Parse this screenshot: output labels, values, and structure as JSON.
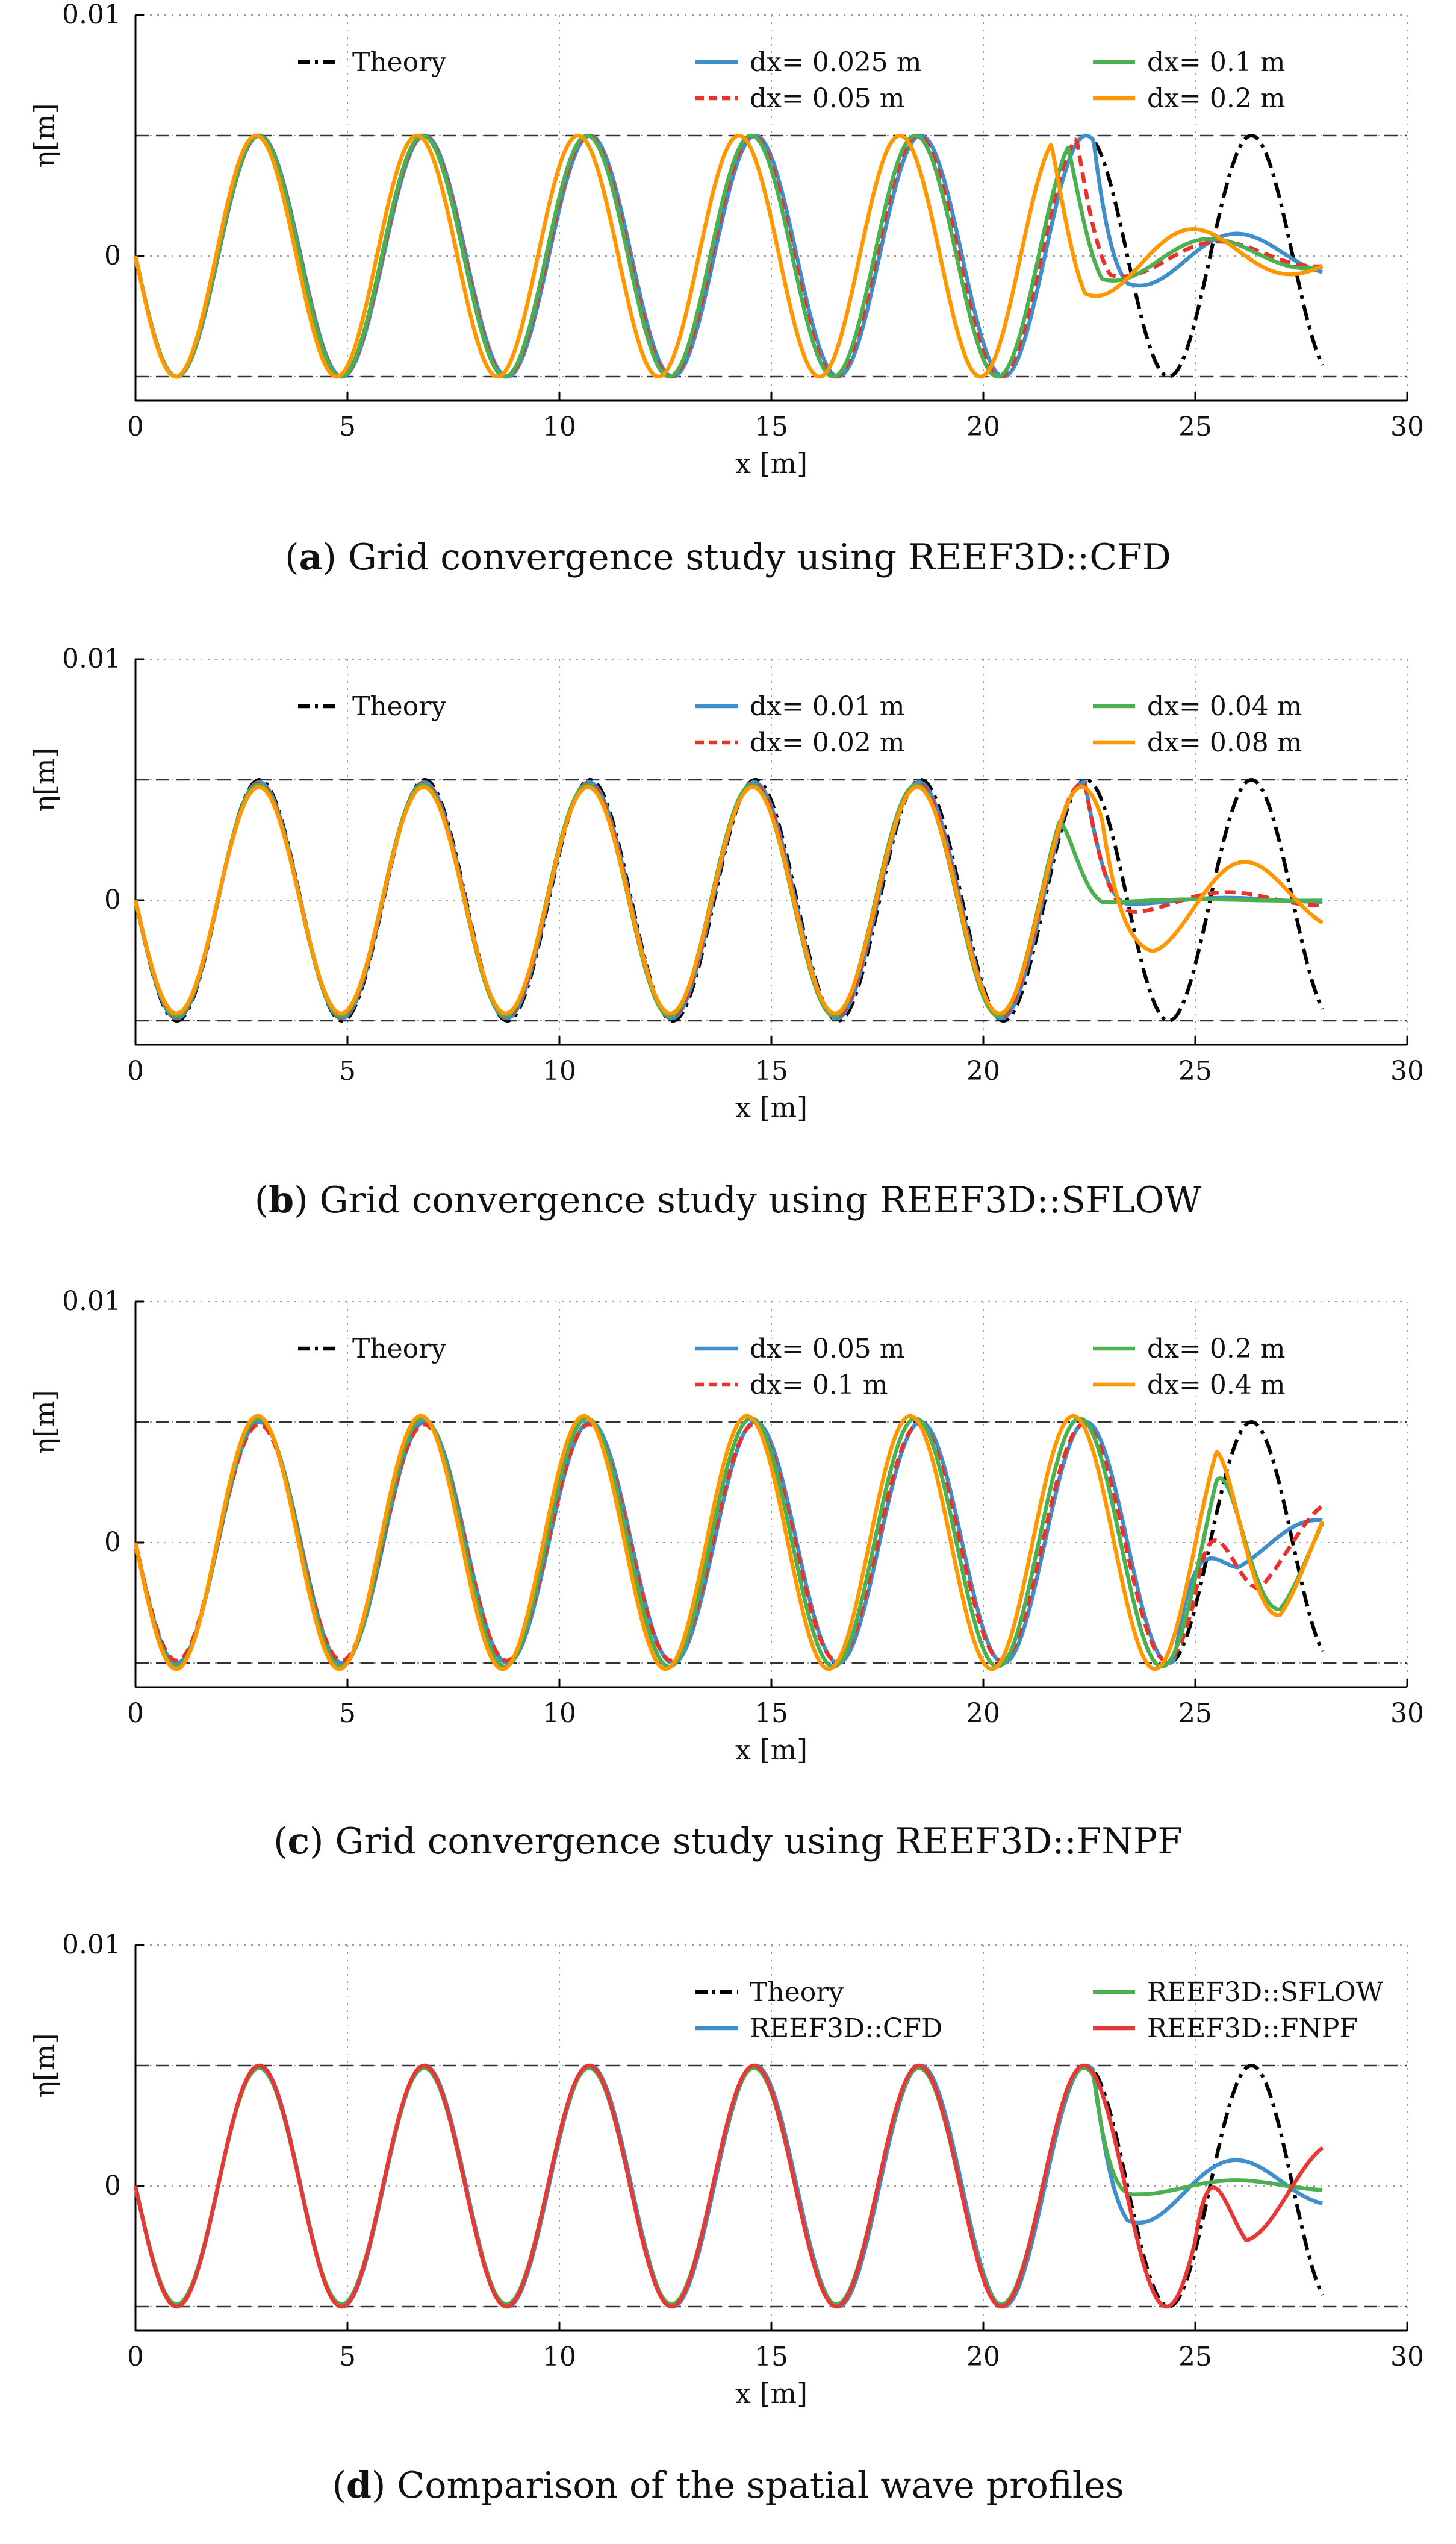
{
  "colors": {
    "theory": "#000000",
    "blue": "#3f8fcd",
    "red_dashed": "#e8322b",
    "green": "#4caf50",
    "orange": "#ff9800",
    "red_solid": "#e53935",
    "reference_lines": "#333333",
    "grid": "#9e9e9e"
  },
  "chart_data": [
    {
      "type": "line",
      "panel_letter": "a",
      "caption": ") Grid convergence study using REEF3D::CFD",
      "xlabel": "x [m]",
      "ylabel": "η[m]",
      "xlim": [
        0,
        30
      ],
      "ylim": [
        -0.006,
        0.01
      ],
      "x_ticks": [
        0,
        5,
        10,
        15,
        20,
        25,
        30
      ],
      "y_ticks": [
        {
          "value": 0.01,
          "label": "0.01"
        },
        {
          "value": 0,
          "label": "0"
        }
      ],
      "grid": true,
      "reference_lines": [
        0.005,
        -0.005
      ],
      "wave": {
        "amplitude": 0.005,
        "wavelength": 3.9,
        "start_x": 0,
        "end_x": 28
      },
      "series": [
        {
          "name": "Theory",
          "legend": "Theory",
          "color": "#000000",
          "style": "dashdot",
          "kind": "theory"
        },
        {
          "name": "dx= 0.025 m",
          "legend": "dx= 0.025 m",
          "color": "#3f8fcd",
          "style": "solid",
          "decay_start": 22.6,
          "decay_len": 0.8,
          "residual_amp": 0.0014,
          "residual_decay": 5.0,
          "amp_scale": 1.0,
          "drift": 0.0
        },
        {
          "name": "dx= 0.05 m",
          "legend": "dx= 0.05 m",
          "color": "#e8322b",
          "style": "dashed",
          "decay_start": 22.2,
          "decay_len": 0.8,
          "residual_amp": 0.001,
          "residual_decay": 4.0,
          "amp_scale": 1.0,
          "drift": -0.08
        },
        {
          "name": "dx= 0.1 m",
          "legend": "dx= 0.1 m",
          "color": "#4caf50",
          "style": "solid",
          "decay_start": 22.0,
          "decay_len": 0.8,
          "residual_amp": 0.0012,
          "residual_decay": 4.0,
          "amp_scale": 1.0,
          "drift": -0.15
        },
        {
          "name": "dx= 0.2 m",
          "legend": "dx= 0.2 m",
          "color": "#ff9800",
          "style": "solid",
          "decay_start": 21.6,
          "decay_len": 0.8,
          "residual_amp": 0.002,
          "residual_decay": 3.5,
          "amp_scale": 1.0,
          "drift": -0.6
        }
      ]
    },
    {
      "type": "line",
      "panel_letter": "b",
      "caption": ") Grid convergence study using REEF3D::SFLOW",
      "xlabel": "x [m]",
      "ylabel": "η[m]",
      "xlim": [
        0,
        30
      ],
      "ylim": [
        -0.006,
        0.01
      ],
      "x_ticks": [
        0,
        5,
        10,
        15,
        20,
        25,
        30
      ],
      "y_ticks": [
        {
          "value": 0.01,
          "label": "0.01"
        },
        {
          "value": 0,
          "label": "0"
        }
      ],
      "grid": true,
      "reference_lines": [
        0.005,
        -0.005
      ],
      "wave": {
        "amplitude": 0.005,
        "wavelength": 3.9,
        "start_x": 0,
        "end_x": 28
      },
      "series": [
        {
          "name": "Theory",
          "legend": "Theory",
          "color": "#000000",
          "style": "dashdot",
          "kind": "theory"
        },
        {
          "name": "dx= 0.01 m",
          "legend": "dx= 0.01 m",
          "color": "#3f8fcd",
          "style": "solid",
          "decay_start": 22.4,
          "decay_len": 1.2,
          "residual_amp": 0.0002,
          "residual_decay": 3.0,
          "amp_scale": 0.98,
          "drift": -0.05
        },
        {
          "name": "dx= 0.02 m",
          "legend": "dx= 0.02 m",
          "color": "#e8322b",
          "style": "dashed",
          "decay_start": 22.4,
          "decay_len": 1.4,
          "residual_amp": 0.0006,
          "residual_decay": 3.5,
          "amp_scale": 0.97,
          "drift": -0.08
        },
        {
          "name": "dx= 0.04 m",
          "legend": "dx= 0.04 m",
          "color": "#4caf50",
          "style": "solid",
          "decay_start": 21.8,
          "decay_len": 1.0,
          "residual_amp": 0.0001,
          "residual_decay": 2.0,
          "amp_scale": 0.96,
          "drift": -0.12
        },
        {
          "name": "dx= 0.08 m",
          "legend": "dx= 0.08 m",
          "color": "#ff9800",
          "style": "solid",
          "decay_start": 22.8,
          "decay_len": 1.2,
          "residual_amp": 0.0025,
          "residual_decay": 4.5,
          "amp_scale": 0.94,
          "drift": -0.1
        }
      ]
    },
    {
      "type": "line",
      "panel_letter": "c",
      "caption": ") Grid convergence study using REEF3D::FNPF",
      "xlabel": "x [m]",
      "ylabel": "η[m]",
      "xlim": [
        0,
        30
      ],
      "ylim": [
        -0.006,
        0.01
      ],
      "x_ticks": [
        0,
        5,
        10,
        15,
        20,
        25,
        30
      ],
      "y_ticks": [
        {
          "value": 0.01,
          "label": "0.01"
        },
        {
          "value": 0,
          "label": "0"
        }
      ],
      "grid": true,
      "reference_lines": [
        0.005,
        -0.005
      ],
      "wave": {
        "amplitude": 0.005,
        "wavelength": 3.9,
        "start_x": 0,
        "end_x": 28
      },
      "series": [
        {
          "name": "Theory",
          "legend": "Theory",
          "color": "#000000",
          "style": "dashdot",
          "kind": "theory"
        },
        {
          "name": "dx= 0.05 m",
          "legend": "dx= 0.05 m",
          "color": "#3f8fcd",
          "style": "solid",
          "decay_start": 24.5,
          "decay_len": 1.5,
          "residual_amp": 0.0014,
          "residual_decay": 5.0,
          "amp_scale": 1.0,
          "drift": 0.0
        },
        {
          "name": "dx= 0.1 m",
          "legend": "dx= 0.1 m",
          "color": "#e8322b",
          "style": "dashed",
          "decay_start": 25.0,
          "decay_len": 1.5,
          "residual_amp": 0.0025,
          "residual_decay": 6.0,
          "amp_scale": 0.98,
          "drift": -0.05
        },
        {
          "name": "dx= 0.2 m",
          "legend": "dx= 0.2 m",
          "color": "#4caf50",
          "style": "solid",
          "decay_start": 25.5,
          "decay_len": 1.5,
          "residual_amp": 0.0035,
          "residual_decay": 8.0,
          "amp_scale": 1.03,
          "drift": -0.15
        },
        {
          "name": "dx= 0.4 m",
          "legend": "dx= 0.4 m",
          "color": "#ff9800",
          "style": "solid",
          "decay_start": 25.5,
          "decay_len": 1.5,
          "residual_amp": 0.0038,
          "residual_decay": 8.0,
          "amp_scale": 1.05,
          "drift": -0.3
        }
      ]
    },
    {
      "type": "line",
      "panel_letter": "d",
      "caption": ") Comparison of the spatial wave profiles",
      "xlabel": "x [m]",
      "ylabel": "η[m]",
      "xlim": [
        0,
        30
      ],
      "ylim": [
        -0.006,
        0.01
      ],
      "x_ticks": [
        0,
        5,
        10,
        15,
        20,
        25,
        30
      ],
      "y_ticks": [
        {
          "value": 0.01,
          "label": "0.01"
        },
        {
          "value": 0,
          "label": "0"
        }
      ],
      "grid": true,
      "reference_lines": [
        0.005,
        -0.005
      ],
      "wave": {
        "amplitude": 0.005,
        "wavelength": 3.9,
        "start_x": 0,
        "end_x": 28
      },
      "series": [
        {
          "name": "Theory",
          "legend": "Theory",
          "color": "#000000",
          "style": "dashdot",
          "kind": "theory"
        },
        {
          "name": "REEF3D::CFD",
          "legend": "REEF3D::CFD",
          "color": "#3f8fcd",
          "style": "solid",
          "decay_start": 22.6,
          "decay_len": 0.8,
          "residual_amp": 0.0018,
          "residual_decay": 4.0,
          "amp_scale": 1.0,
          "drift": 0.0
        },
        {
          "name": "REEF3D::SFLOW",
          "legend": "REEF3D::SFLOW",
          "color": "#4caf50",
          "style": "solid",
          "decay_start": 22.6,
          "decay_len": 1.0,
          "residual_amp": 0.0004,
          "residual_decay": 4.0,
          "amp_scale": 0.98,
          "drift": -0.05
        },
        {
          "name": "REEF3D::FNPF",
          "legend": "REEF3D::FNPF",
          "color": "#e53935",
          "style": "solid",
          "decay_start": 25.0,
          "decay_len": 1.2,
          "residual_amp": 0.0025,
          "residual_decay": 7.0,
          "amp_scale": 1.0,
          "drift": -0.05
        }
      ]
    }
  ]
}
